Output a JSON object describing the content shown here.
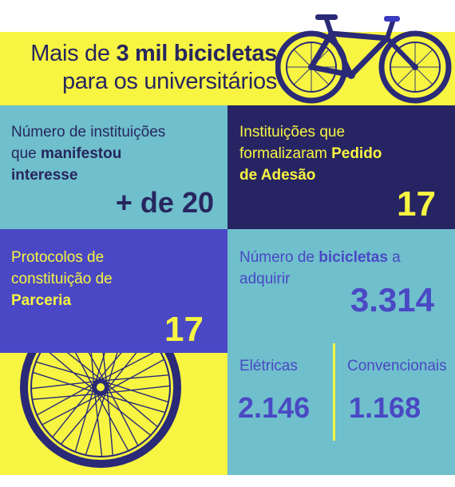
{
  "colors": {
    "yellow": "#f7f542",
    "teal": "#6fbfcc",
    "navy": "#272463",
    "violet": "#4a48c4",
    "text_dark": "#27265f",
    "text_yellow": "#f7f542",
    "white": "#ffffff"
  },
  "header": {
    "line1_pre": "Mais de ",
    "line1_bold": "3 mil bicicletas",
    "line2": "para os universitários"
  },
  "panel_interest": {
    "line1": "Número de instituições",
    "line2_pre": "que ",
    "line2_bold": "manifestou",
    "line3_bold": "interesse",
    "value": "+ de 20"
  },
  "panel_adhesion": {
    "line1": "Instituições que",
    "line2_pre": "formalizaram ",
    "line2_bold": "Pedido",
    "line3_bold": "de Adesão",
    "value": "17"
  },
  "panel_protocols": {
    "line1": "Protocolos de",
    "line2": "constituição de",
    "line3_bold": "Parceria",
    "value": "17"
  },
  "panel_bikes": {
    "line1_pre": "Número de ",
    "line1_bold": "bicicletas",
    "line1_post": " a",
    "line2": "adquirir",
    "value": "3.314",
    "electric_label": "Elétricas",
    "electric_value": "2.146",
    "conventional_label": "Convencionais",
    "conventional_value": "1.168"
  },
  "icons": {
    "bike": "bicycle-icon",
    "wheel": "wheel-icon"
  }
}
